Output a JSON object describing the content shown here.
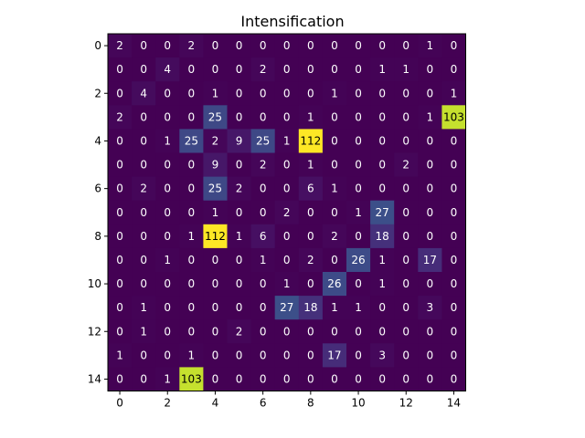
{
  "chart_data": {
    "type": "heatmap",
    "title": "Intensification",
    "colormap": "viridis",
    "vmin": 0,
    "vmax": 112,
    "xticks": [
      0,
      2,
      4,
      6,
      8,
      10,
      12,
      14
    ],
    "yticks": [
      0,
      2,
      4,
      6,
      8,
      10,
      12,
      14
    ],
    "matrix": [
      [
        2,
        0,
        0,
        2,
        0,
        0,
        0,
        0,
        0,
        0,
        0,
        0,
        0,
        1,
        0
      ],
      [
        0,
        0,
        4,
        0,
        0,
        0,
        2,
        0,
        0,
        0,
        0,
        1,
        1,
        0,
        0
      ],
      [
        0,
        4,
        0,
        0,
        1,
        0,
        0,
        0,
        0,
        1,
        0,
        0,
        0,
        0,
        1
      ],
      [
        2,
        0,
        0,
        0,
        25,
        0,
        0,
        0,
        1,
        0,
        0,
        0,
        0,
        1,
        103
      ],
      [
        0,
        0,
        1,
        25,
        2,
        9,
        25,
        1,
        112,
        0,
        0,
        0,
        0,
        0,
        0
      ],
      [
        0,
        0,
        0,
        0,
        9,
        0,
        2,
        0,
        1,
        0,
        0,
        0,
        2,
        0,
        0
      ],
      [
        0,
        2,
        0,
        0,
        25,
        2,
        0,
        0,
        6,
        1,
        0,
        0,
        0,
        0,
        0
      ],
      [
        0,
        0,
        0,
        0,
        1,
        0,
        0,
        2,
        0,
        0,
        1,
        27,
        0,
        0,
        0
      ],
      [
        0,
        0,
        0,
        1,
        112,
        1,
        6,
        0,
        0,
        2,
        0,
        18,
        0,
        0,
        0
      ],
      [
        0,
        0,
        1,
        0,
        0,
        0,
        1,
        0,
        2,
        0,
        26,
        1,
        0,
        17,
        0
      ],
      [
        0,
        0,
        0,
        0,
        0,
        0,
        0,
        1,
        0,
        26,
        0,
        1,
        0,
        0,
        0
      ],
      [
        0,
        1,
        0,
        0,
        0,
        0,
        0,
        27,
        18,
        1,
        1,
        0,
        0,
        3,
        0
      ],
      [
        0,
        1,
        0,
        0,
        0,
        2,
        0,
        0,
        0,
        0,
        0,
        0,
        0,
        0,
        0
      ],
      [
        1,
        0,
        0,
        1,
        0,
        0,
        0,
        0,
        0,
        17,
        0,
        3,
        0,
        0,
        0
      ],
      [
        0,
        0,
        1,
        103,
        0,
        0,
        0,
        0,
        0,
        0,
        0,
        0,
        0,
        0,
        0
      ]
    ]
  }
}
